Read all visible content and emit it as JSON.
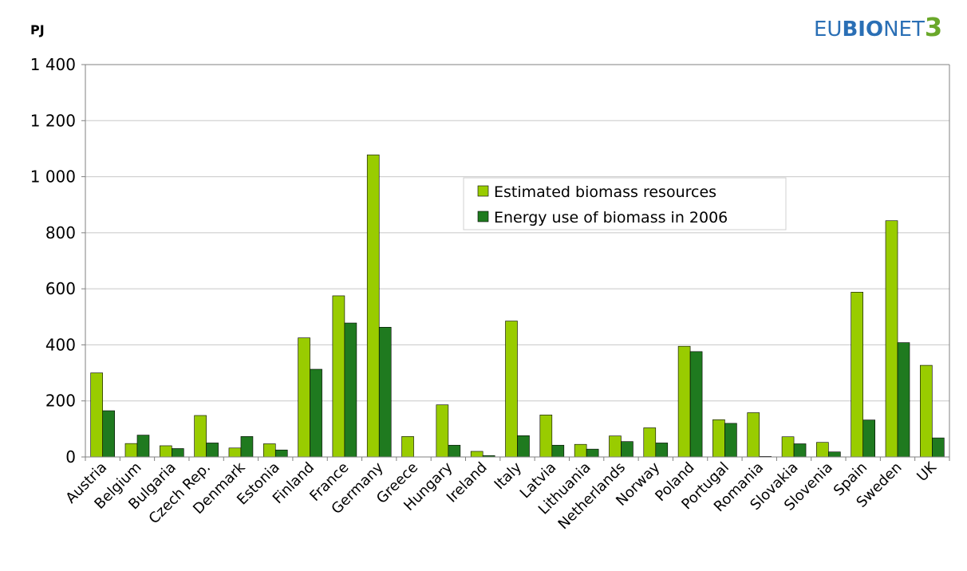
{
  "logo": {
    "part1": "EU",
    "part2": "BIO",
    "part3": "NET",
    "part4": "3",
    "color_main": "#2a6fb5",
    "color_accent": "#6aa82a"
  },
  "chart_data": {
    "type": "bar",
    "ylabel": "PJ",
    "ylim": [
      0,
      1400
    ],
    "yticks": [
      0,
      200,
      400,
      600,
      800,
      1000,
      1200,
      1400
    ],
    "ytick_labels": [
      "0",
      "200",
      "400",
      "600",
      "800",
      "1 000",
      "1 200",
      "1 400"
    ],
    "grid": true,
    "legend_position": "upper-center",
    "categories": [
      "Austria",
      "Belgium",
      "Bulgaria",
      "Czech Rep.",
      "Denmark",
      "Estonia",
      "Finland",
      "France",
      "Germany",
      "Greece",
      "Hungary",
      "Ireland",
      "Italy",
      "Latvia",
      "Lithuania",
      "Netherlands",
      "Norway",
      "Poland",
      "Portugal",
      "Romania",
      "Slovakia",
      "Slovenia",
      "Spain",
      "Sweden",
      "UK"
    ],
    "series": [
      {
        "name": "Estimated biomass resources",
        "color": "#99cc00",
        "values": [
          300,
          48,
          40,
          148,
          32,
          47,
          425,
          575,
          1078,
          73,
          186,
          20,
          485,
          150,
          45,
          75,
          104,
          395,
          133,
          158,
          72,
          52,
          588,
          843,
          327
        ]
      },
      {
        "name": "Energy use of biomass in 2006",
        "color": "#1f7a1f",
        "values": [
          165,
          78,
          30,
          50,
          73,
          25,
          313,
          478,
          463,
          0,
          42,
          5,
          76,
          42,
          28,
          55,
          50,
          376,
          120,
          2,
          47,
          18,
          132,
          408,
          68
        ]
      }
    ]
  }
}
